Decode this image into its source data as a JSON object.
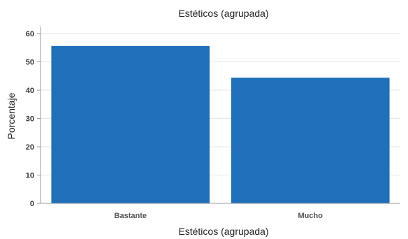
{
  "chart_data": {
    "type": "bar",
    "title": "Estéticos (agrupada)",
    "xlabel": "Estéticos (agrupada)",
    "ylabel": "Porcentaje",
    "categories": [
      "Bastante",
      "Mucho"
    ],
    "values": [
      55.6,
      44.4
    ],
    "ylim": [
      0,
      60
    ],
    "yticks": [
      0,
      10,
      20,
      30,
      40,
      50,
      60
    ],
    "grid": true,
    "bar_color": "#1f6fba"
  }
}
